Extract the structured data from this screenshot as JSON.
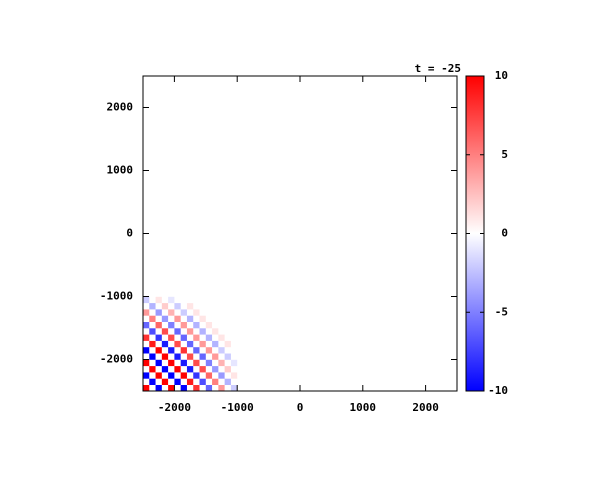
{
  "chart_data": {
    "type": "heatmap",
    "title": "t = -25",
    "x": [
      -2450,
      -2350,
      -2250,
      -2150,
      -2050,
      -1950,
      -1850,
      -1750,
      -1650,
      -1550,
      -1450,
      -1350,
      -1250,
      -1150,
      -1050,
      -950
    ],
    "y": [
      -2450,
      -2350,
      -2250,
      -2150,
      -2050,
      -1950,
      -1850,
      -1750,
      -1650,
      -1550,
      -1450,
      -1350,
      -1250,
      -1150,
      -1050,
      -950
    ],
    "z": [
      [
        10,
        0,
        -10,
        0,
        10,
        0,
        -10,
        0,
        8,
        0,
        -6,
        0,
        4,
        0,
        -2,
        0
      ],
      [
        0,
        -10,
        0,
        10,
        0,
        -10,
        0,
        9,
        0,
        -7,
        0,
        5,
        0,
        -3,
        0,
        0
      ],
      [
        -10,
        0,
        10,
        0,
        -10,
        0,
        10,
        0,
        -8,
        0,
        6,
        0,
        -4,
        0,
        1,
        0
      ],
      [
        0,
        10,
        0,
        -10,
        0,
        10,
        0,
        -9,
        0,
        7,
        0,
        -4,
        0,
        2,
        0,
        0
      ],
      [
        10,
        0,
        -10,
        0,
        10,
        0,
        -9,
        0,
        7,
        0,
        -5,
        0,
        3,
        0,
        -1,
        0
      ],
      [
        0,
        -10,
        0,
        10,
        0,
        -9,
        0,
        7,
        0,
        -6,
        0,
        4,
        0,
        -2,
        0,
        0
      ],
      [
        -10,
        0,
        10,
        0,
        -9,
        0,
        8,
        0,
        -6,
        0,
        4,
        0,
        -2,
        0,
        0,
        0
      ],
      [
        0,
        9,
        0,
        -9,
        0,
        7,
        0,
        -6,
        0,
        4,
        0,
        -3,
        0,
        1,
        0,
        0
      ],
      [
        8,
        0,
        -8,
        0,
        7,
        0,
        -6,
        0,
        4,
        0,
        -3,
        0,
        1,
        0,
        0,
        0
      ],
      [
        0,
        -7,
        0,
        7,
        0,
        -6,
        0,
        4,
        0,
        -3,
        0,
        1,
        0,
        0,
        0,
        0
      ],
      [
        -6,
        0,
        6,
        0,
        -5,
        0,
        4,
        0,
        -3,
        0,
        1,
        0,
        0,
        0,
        0,
        0
      ],
      [
        0,
        5,
        0,
        -4,
        0,
        4,
        0,
        -3,
        0,
        1,
        0,
        0,
        0,
        0,
        0,
        0
      ],
      [
        4,
        0,
        -4,
        0,
        3,
        0,
        -2,
        0,
        1,
        0,
        0,
        0,
        0,
        0,
        0,
        0
      ],
      [
        0,
        -3,
        0,
        2,
        0,
        -2,
        0,
        1,
        0,
        0,
        0,
        0,
        0,
        0,
        0,
        0
      ],
      [
        -2,
        0,
        1,
        0,
        -1,
        0,
        0,
        0,
        0,
        0,
        0,
        0,
        0,
        0,
        0,
        0
      ],
      [
        0,
        0,
        0,
        0,
        0,
        0,
        0,
        0,
        0,
        0,
        0,
        0,
        0,
        0,
        0,
        0
      ]
    ],
    "xlim": [
      -2500,
      2500
    ],
    "ylim": [
      -2500,
      2500
    ],
    "xticks": [
      -2000,
      -1000,
      0,
      1000,
      2000
    ],
    "yticks": [
      -2000,
      -1000,
      0,
      1000,
      2000
    ],
    "zlim": [
      -10,
      10
    ],
    "zticks": [
      -10,
      -5,
      0,
      5,
      10
    ],
    "colormap": [
      "#0000ff",
      "#ffffff",
      "#ff0000"
    ]
  }
}
